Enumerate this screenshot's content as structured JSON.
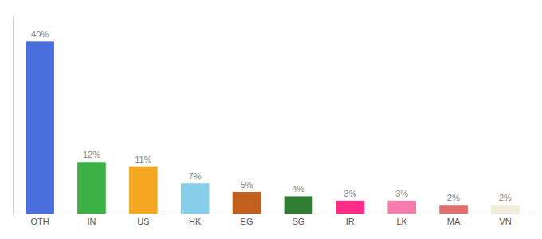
{
  "chart_data": {
    "type": "bar",
    "categories": [
      "OTH",
      "IN",
      "US",
      "HK",
      "EG",
      "SG",
      "IR",
      "LK",
      "MA",
      "VN"
    ],
    "values": [
      40,
      12,
      11,
      7,
      5,
      4,
      3,
      3,
      2,
      2
    ],
    "value_labels": [
      "40%",
      "12%",
      "11%",
      "7%",
      "5%",
      "4%",
      "3%",
      "3%",
      "2%",
      "2%"
    ],
    "colors": [
      "#4a6fdc",
      "#3cb044",
      "#f5a623",
      "#87ceeb",
      "#c1601a",
      "#2e7d32",
      "#ff2d87",
      "#f47cac",
      "#e07070",
      "#f0eedb"
    ],
    "ylim": [
      0,
      46
    ],
    "data_labels": true,
    "tick_labels": "x",
    "grid": false
  }
}
